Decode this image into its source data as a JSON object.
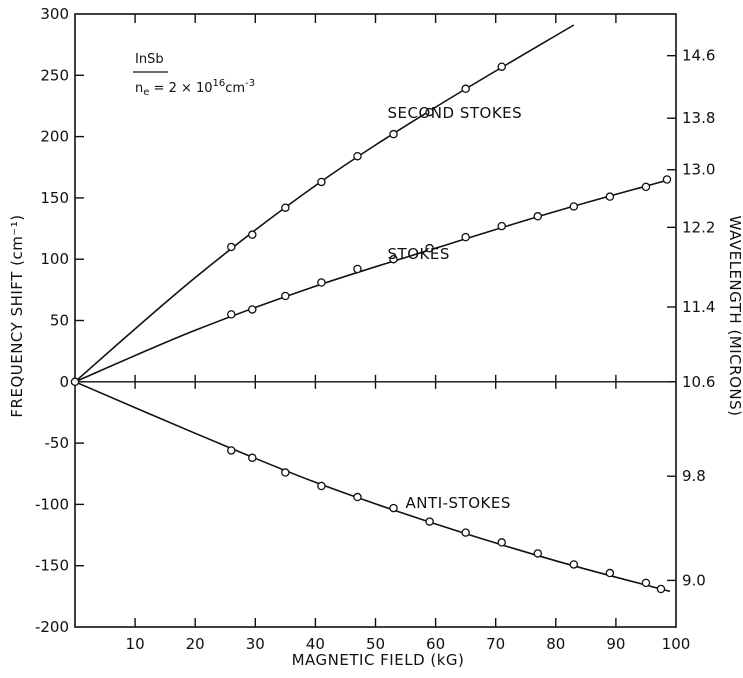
{
  "chart_data": {
    "type": "line",
    "title": "",
    "xlabel": "MAGNETIC FIELD (kG)",
    "ylabel": "FREQUENCY SHIFT (cm⁻¹)",
    "y2label": "WAVELENGTH (MICRONS)",
    "xlim": [
      0,
      100
    ],
    "ylim": [
      -200,
      300
    ],
    "grid": false,
    "xticks": [
      10,
      20,
      30,
      40,
      50,
      60,
      70,
      80,
      90,
      100
    ],
    "yticks": [
      300,
      250,
      200,
      150,
      100,
      50,
      0,
      -50,
      -100,
      -150,
      -200
    ],
    "y2ticks": [
      {
        "label": "14.6",
        "shift": 266
      },
      {
        "label": "13.8",
        "shift": 215
      },
      {
        "label": "13.0",
        "shift": 173
      },
      {
        "label": "12.2",
        "shift": 126
      },
      {
        "label": "11.4",
        "shift": 61
      },
      {
        "label": "10.6",
        "shift": 0
      },
      {
        "label": "9.8",
        "shift": -77
      },
      {
        "label": "9.0",
        "shift": -162
      }
    ],
    "annotation": {
      "line1": "InSb",
      "line2_prefix": "n",
      "line2_sub": "e",
      "line2_mid": " = 2 × 10",
      "line2_sup": "16",
      "line2_unit": "cm",
      "line2_unit_sup": "-3"
    },
    "series": [
      {
        "name": "SECOND STOKES",
        "line": [
          [
            0,
            0
          ],
          [
            20,
            85
          ],
          [
            40,
            160
          ],
          [
            60,
            224
          ],
          [
            83,
            291
          ]
        ],
        "points": [
          [
            26,
            110
          ],
          [
            29.5,
            120
          ],
          [
            35,
            142
          ],
          [
            41,
            163
          ],
          [
            47,
            184
          ],
          [
            53,
            202
          ],
          [
            59,
            220
          ],
          [
            65,
            239
          ],
          [
            71,
            257
          ]
        ]
      },
      {
        "name": "STOKES",
        "line": [
          [
            0,
            0
          ],
          [
            20,
            42
          ],
          [
            40,
            78
          ],
          [
            60,
            109
          ],
          [
            80,
            139
          ],
          [
            99,
            165
          ]
        ],
        "points": [
          [
            26,
            55
          ],
          [
            29.5,
            59
          ],
          [
            35,
            70
          ],
          [
            41,
            81
          ],
          [
            47,
            92
          ],
          [
            53,
            100
          ],
          [
            59,
            109
          ],
          [
            65,
            118
          ],
          [
            71,
            127
          ],
          [
            77,
            135
          ],
          [
            83,
            143
          ],
          [
            89,
            151
          ],
          [
            95,
            159
          ],
          [
            98.5,
            165
          ]
        ]
      },
      {
        "name": "ANTI-STOKES",
        "line": [
          [
            0,
            0
          ],
          [
            20,
            -42
          ],
          [
            40,
            -82
          ],
          [
            60,
            -116
          ],
          [
            80,
            -146
          ],
          [
            99,
            -171
          ]
        ],
        "points": [
          [
            26,
            -56
          ],
          [
            29.5,
            -62
          ],
          [
            35,
            -74
          ],
          [
            41,
            -85
          ],
          [
            47,
            -94
          ],
          [
            53,
            -103
          ],
          [
            59,
            -114
          ],
          [
            65,
            -123
          ],
          [
            71,
            -131
          ],
          [
            77,
            -140
          ],
          [
            83,
            -149
          ],
          [
            89,
            -156
          ],
          [
            95,
            -164
          ],
          [
            97.5,
            -169
          ]
        ]
      }
    ],
    "series_label_pos": [
      {
        "x": 52,
        "y": 215
      },
      {
        "x": 52,
        "y": 100
      },
      {
        "x": 55,
        "y": -103
      }
    ]
  }
}
